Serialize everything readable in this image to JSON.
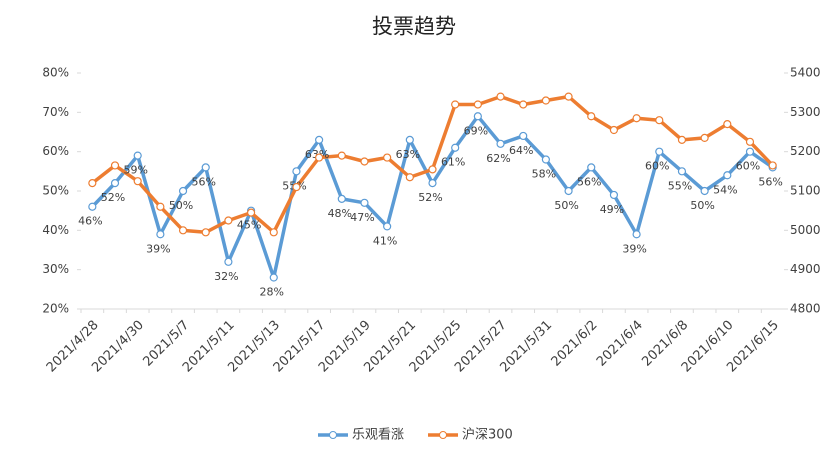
{
  "chart_data": {
    "type": "line",
    "title": "投票趋势",
    "categories": [
      "2021/4/28",
      null,
      "2021/4/30",
      null,
      "2021/5/7",
      null,
      "2021/5/11",
      null,
      "2021/5/13",
      null,
      "2021/5/17",
      null,
      "2021/5/19",
      null,
      "2021/5/21",
      null,
      "2021/5/25",
      null,
      "2021/5/27",
      null,
      "2021/5/31",
      null,
      "2021/6/2",
      null,
      "2021/6/4",
      null,
      "2021/6/8",
      null,
      "2021/6/10",
      null,
      "2021/6/15"
    ],
    "series": [
      {
        "name": "乐观看涨",
        "color": "#5b9bd5",
        "values": [
          46,
          52,
          59,
          39,
          50,
          56,
          32,
          45,
          28,
          55,
          63,
          48,
          47,
          41,
          63,
          52,
          61,
          69,
          62,
          64,
          58,
          50,
          56,
          49,
          39,
          60,
          55,
          50,
          54,
          60,
          56
        ],
        "value_labels": [
          "46%",
          "52%",
          "59%",
          "39%",
          "50%",
          "56%",
          "32%",
          "45%",
          "28%",
          "55%",
          "63%",
          "48%",
          "47%",
          "41%",
          "63%",
          "52%",
          "61%",
          "69%",
          "62%",
          "64%",
          "58%",
          "50%",
          "56%",
          "49%",
          "39%",
          "60%",
          "55%",
          "50%",
          "54%",
          "60%",
          "56%"
        ]
      },
      {
        "name": "沪深300",
        "color": "#ed7d31",
        "axis": "y2",
        "values": [
          5120,
          5165,
          5125,
          5060,
          5000,
          4995,
          5025,
          5045,
          4995,
          5110,
          5185,
          5190,
          5175,
          5185,
          5135,
          5155,
          5320,
          5320,
          5340,
          5320,
          5330,
          5340,
          5290,
          5255,
          5285,
          5280,
          5230,
          5235,
          5270,
          5225,
          5165
        ]
      }
    ],
    "ylim": [
      20,
      80
    ],
    "yticks": [
      {
        "value": 20,
        "label": "20%"
      },
      {
        "value": 30,
        "label": "30%"
      },
      {
        "value": 40,
        "label": "40%"
      },
      {
        "value": 50,
        "label": "50%"
      },
      {
        "value": 60,
        "label": "60%"
      },
      {
        "value": 70,
        "label": "70%"
      },
      {
        "value": 80,
        "label": "80%"
      }
    ],
    "y2lim": [
      4800,
      5400
    ],
    "y2ticks": [
      4800,
      4900,
      5000,
      5100,
      5200,
      5300,
      5400
    ],
    "grid": false,
    "legend": "bottom"
  }
}
